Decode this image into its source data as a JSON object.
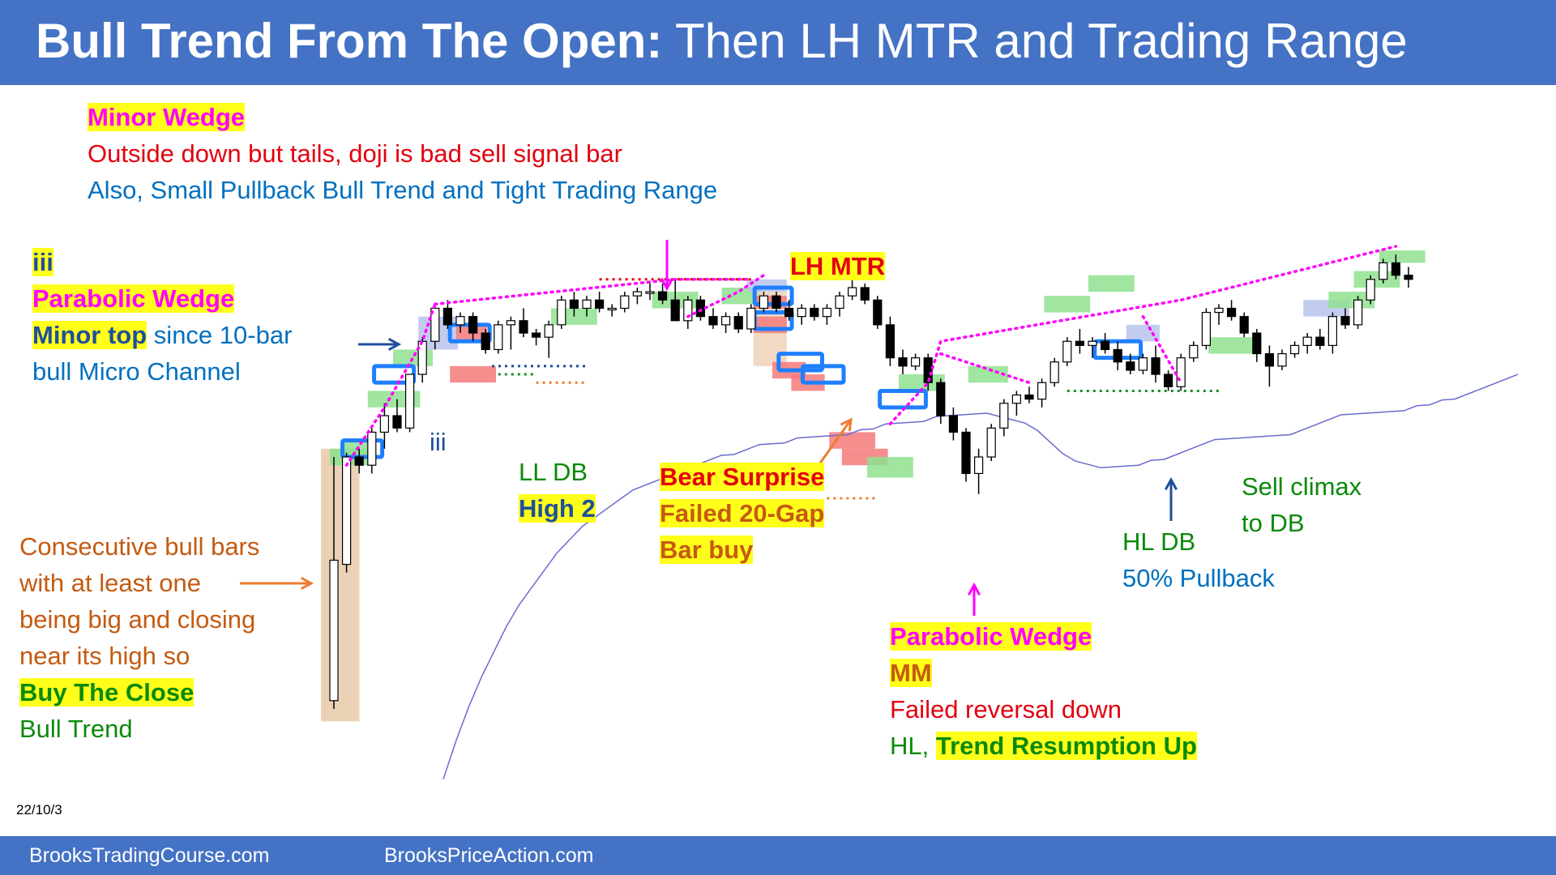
{
  "title": {
    "bold": "Bull Trend From The Open:",
    "rest": " Then LH MTR and Trading Range"
  },
  "date": "22/10/3",
  "footer": {
    "left": "BrooksTradingCourse.com",
    "right": "BrooksPriceAction.com"
  },
  "annotations": {
    "minor_wedge": "Minor Wedge",
    "outside_down": "Outside down but tails, doji is bad sell signal bar",
    "also_small": "Also, Small Pullback Bull Trend and Tight Trading Range",
    "iii_top": "iii",
    "parabolic_wedge_left": "Parabolic Wedge",
    "minor_top": "Minor top",
    "since_10bar": " since 10-bar",
    "micro_channel": "bull Micro Channel",
    "iii_small": "iii",
    "ll_db": "LL DB",
    "high2": "High 2",
    "lh_mtr": "LH MTR",
    "bear_surprise": "Bear Surprise",
    "failed_20gap": "Failed 20-Gap",
    "bar_buy": "Bar buy",
    "consecutive": [
      "Consecutive bull bars",
      "with at least one",
      "being big and closing",
      "near its high so"
    ],
    "buy_the_close": "Buy The Close",
    "bull_trend": "Bull Trend",
    "parabolic_wedge_bottom": "Parabolic Wedge",
    "mm": "MM",
    "failed_reversal": "Failed reversal down",
    "hl_prefix": "HL, ",
    "trend_resumption": "Trend Resumption Up",
    "hl_db": "HL DB",
    "pullback50": "50% Pullback",
    "sell_climax": "Sell climax",
    "to_db": "to DB"
  },
  "colors": {
    "header": "#4472c4",
    "bull_body": "#ffffff",
    "bear_body": "#000000",
    "ema": "#6a6ad0",
    "green_box": "#8fe08f",
    "red_box": "#f47a7a",
    "blue_outline": "#1e7fff",
    "highlight": "#ffff1a",
    "magenta": "#ff00ff"
  },
  "chart_data": {
    "type": "candlestick",
    "title": "",
    "xlabel": "",
    "ylabel": "",
    "ylim": [
      0,
      100
    ],
    "bars": [
      {
        "o": 5,
        "h": 64,
        "l": 3,
        "c": 39
      },
      {
        "o": 38,
        "h": 65,
        "l": 36,
        "c": 64
      },
      {
        "o": 64,
        "h": 66,
        "l": 60,
        "c": 62
      },
      {
        "o": 62,
        "h": 71,
        "l": 60,
        "c": 70
      },
      {
        "o": 70,
        "h": 77,
        "l": 66,
        "c": 74
      },
      {
        "o": 74,
        "h": 78,
        "l": 70,
        "c": 71
      },
      {
        "o": 71,
        "h": 84,
        "l": 70,
        "c": 84
      },
      {
        "o": 84,
        "h": 93,
        "l": 82,
        "c": 92
      },
      {
        "o": 92,
        "h": 101,
        "l": 90,
        "c": 100
      },
      {
        "o": 100,
        "h": 102,
        "l": 95,
        "c": 96
      },
      {
        "o": 96,
        "h": 99,
        "l": 94,
        "c": 98
      },
      {
        "o": 98,
        "h": 99,
        "l": 92,
        "c": 94
      },
      {
        "o": 94,
        "h": 95,
        "l": 89,
        "c": 90
      },
      {
        "o": 90,
        "h": 97,
        "l": 89,
        "c": 96
      },
      {
        "o": 96,
        "h": 98,
        "l": 90,
        "c": 97
      },
      {
        "o": 97,
        "h": 100,
        "l": 93,
        "c": 94
      },
      {
        "o": 94,
        "h": 95,
        "l": 91,
        "c": 93
      },
      {
        "o": 93,
        "h": 97,
        "l": 88,
        "c": 96
      },
      {
        "o": 96,
        "h": 103,
        "l": 95,
        "c": 102
      },
      {
        "o": 102,
        "h": 104,
        "l": 98,
        "c": 100
      },
      {
        "o": 100,
        "h": 103,
        "l": 98,
        "c": 102
      },
      {
        "o": 102,
        "h": 104,
        "l": 99,
        "c": 100
      },
      {
        "o": 100,
        "h": 101,
        "l": 98,
        "c": 100
      },
      {
        "o": 100,
        "h": 104,
        "l": 99,
        "c": 103
      },
      {
        "o": 103,
        "h": 105,
        "l": 101,
        "c": 104
      },
      {
        "o": 104,
        "h": 106,
        "l": 102,
        "c": 104
      },
      {
        "o": 104,
        "h": 106,
        "l": 101,
        "c": 102
      },
      {
        "o": 102,
        "h": 107,
        "l": 98,
        "c": 97
      },
      {
        "o": 97,
        "h": 103,
        "l": 95,
        "c": 102
      },
      {
        "o": 102,
        "h": 103,
        "l": 97,
        "c": 98
      },
      {
        "o": 98,
        "h": 100,
        "l": 95,
        "c": 96
      },
      {
        "o": 96,
        "h": 99,
        "l": 94,
        "c": 98
      },
      {
        "o": 98,
        "h": 99,
        "l": 94,
        "c": 95
      },
      {
        "o": 95,
        "h": 101,
        "l": 94,
        "c": 100
      },
      {
        "o": 100,
        "h": 104,
        "l": 99,
        "c": 103
      },
      {
        "o": 103,
        "h": 104,
        "l": 99,
        "c": 100
      },
      {
        "o": 100,
        "h": 102,
        "l": 97,
        "c": 98
      },
      {
        "o": 98,
        "h": 101,
        "l": 96,
        "c": 100
      },
      {
        "o": 100,
        "h": 101,
        "l": 97,
        "c": 98
      },
      {
        "o": 98,
        "h": 101,
        "l": 96,
        "c": 100
      },
      {
        "o": 100,
        "h": 104,
        "l": 98,
        "c": 103
      },
      {
        "o": 103,
        "h": 107,
        "l": 102,
        "c": 105
      },
      {
        "o": 105,
        "h": 106,
        "l": 101,
        "c": 102
      },
      {
        "o": 102,
        "h": 103,
        "l": 95,
        "c": 96
      },
      {
        "o": 96,
        "h": 98,
        "l": 86,
        "c": 88
      },
      {
        "o": 88,
        "h": 90,
        "l": 84,
        "c": 86
      },
      {
        "o": 86,
        "h": 89,
        "l": 85,
        "c": 88
      },
      {
        "o": 88,
        "h": 89,
        "l": 80,
        "c": 82
      },
      {
        "o": 82,
        "h": 83,
        "l": 72,
        "c": 74
      },
      {
        "o": 74,
        "h": 76,
        "l": 68,
        "c": 70
      },
      {
        "o": 70,
        "h": 71,
        "l": 58,
        "c": 60
      },
      {
        "o": 60,
        "h": 66,
        "l": 55,
        "c": 64
      },
      {
        "o": 64,
        "h": 72,
        "l": 63,
        "c": 71
      },
      {
        "o": 71,
        "h": 78,
        "l": 69,
        "c": 77
      },
      {
        "o": 77,
        "h": 80,
        "l": 74,
        "c": 79
      },
      {
        "o": 79,
        "h": 81,
        "l": 77,
        "c": 78
      },
      {
        "o": 78,
        "h": 83,
        "l": 76,
        "c": 82
      },
      {
        "o": 82,
        "h": 88,
        "l": 81,
        "c": 87
      },
      {
        "o": 87,
        "h": 93,
        "l": 86,
        "c": 92
      },
      {
        "o": 92,
        "h": 95,
        "l": 89,
        "c": 91
      },
      {
        "o": 91,
        "h": 93,
        "l": 88,
        "c": 92
      },
      {
        "o": 92,
        "h": 94,
        "l": 89,
        "c": 90
      },
      {
        "o": 90,
        "h": 92,
        "l": 85,
        "c": 87
      },
      {
        "o": 87,
        "h": 89,
        "l": 84,
        "c": 85
      },
      {
        "o": 85,
        "h": 89,
        "l": 84,
        "c": 88
      },
      {
        "o": 88,
        "h": 91,
        "l": 82,
        "c": 84
      },
      {
        "o": 84,
        "h": 85,
        "l": 80,
        "c": 81
      },
      {
        "o": 81,
        "h": 89,
        "l": 80,
        "c": 88
      },
      {
        "o": 88,
        "h": 92,
        "l": 87,
        "c": 91
      },
      {
        "o": 91,
        "h": 100,
        "l": 90,
        "c": 99
      },
      {
        "o": 99,
        "h": 101,
        "l": 96,
        "c": 100
      },
      {
        "o": 100,
        "h": 102,
        "l": 97,
        "c": 98
      },
      {
        "o": 98,
        "h": 99,
        "l": 93,
        "c": 94
      },
      {
        "o": 94,
        "h": 95,
        "l": 87,
        "c": 89
      },
      {
        "o": 89,
        "h": 91,
        "l": 81,
        "c": 86
      },
      {
        "o": 86,
        "h": 90,
        "l": 85,
        "c": 89
      },
      {
        "o": 89,
        "h": 92,
        "l": 88,
        "c": 91
      },
      {
        "o": 91,
        "h": 94,
        "l": 89,
        "c": 93
      },
      {
        "o": 93,
        "h": 95,
        "l": 90,
        "c": 91
      },
      {
        "o": 91,
        "h": 99,
        "l": 89,
        "c": 98
      },
      {
        "o": 98,
        "h": 100,
        "l": 95,
        "c": 96
      },
      {
        "o": 96,
        "h": 103,
        "l": 95,
        "c": 102
      },
      {
        "o": 102,
        "h": 108,
        "l": 101,
        "c": 107
      },
      {
        "o": 107,
        "h": 112,
        "l": 106,
        "c": 111
      },
      {
        "o": 111,
        "h": 113,
        "l": 107,
        "c": 108
      },
      {
        "o": 108,
        "h": 110,
        "l": 105,
        "c": 107
      }
    ],
    "ema": [
      16,
      25,
      33,
      40,
      46,
      52,
      57,
      61,
      65,
      69,
      72,
      75,
      77,
      79,
      81,
      83,
      84,
      85,
      86,
      87,
      88,
      89,
      90,
      90,
      91,
      92,
      92,
      92,
      93,
      93,
      93,
      93,
      93,
      94,
      94,
      95,
      95,
      95,
      95,
      96,
      96,
      96,
      96,
      96,
      95,
      94,
      93,
      91,
      88,
      85,
      83,
      82,
      81,
      81,
      81,
      81,
      82,
      82,
      83,
      84,
      85,
      86,
      86,
      86,
      86,
      86,
      86,
      86,
      87,
      88,
      89,
      90,
      90,
      90,
      90,
      90,
      90,
      91,
      91,
      92,
      92,
      93,
      94,
      95,
      96,
      97
    ]
  }
}
